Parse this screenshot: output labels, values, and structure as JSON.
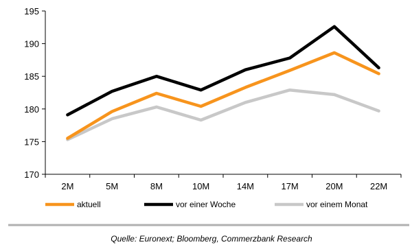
{
  "chart_data": {
    "type": "line",
    "categories": [
      "2M",
      "5M",
      "8M",
      "10M",
      "14M",
      "17M",
      "20M",
      "22M"
    ],
    "ylim": [
      170,
      195
    ],
    "yticks": [
      170,
      175,
      180,
      185,
      190,
      195
    ],
    "grid": false,
    "legend_position": "bottom",
    "series": [
      {
        "name": "aktuell",
        "color": "#f7941d",
        "values": [
          175.5,
          179.6,
          182.4,
          180.4,
          183.3,
          185.9,
          188.6,
          185.4
        ]
      },
      {
        "name": "vor einer Woche",
        "color": "#000000",
        "values": [
          179.1,
          182.7,
          185.0,
          182.9,
          186.0,
          187.8,
          192.6,
          186.3
        ]
      },
      {
        "name": "vor einem Monat",
        "color": "#c8c8c8",
        "values": [
          175.3,
          178.5,
          180.3,
          178.3,
          181.0,
          182.9,
          182.2,
          179.7
        ]
      }
    ]
  },
  "source": "Quelle: Euronext; Bloomberg, Commerzbank Research"
}
